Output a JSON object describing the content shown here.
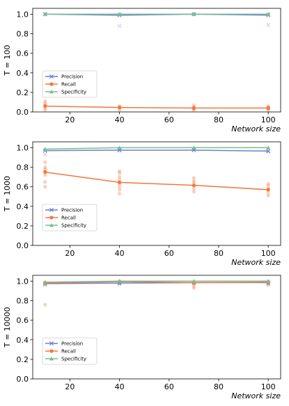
{
  "colors": {
    "precision": "#6b7fd7",
    "recall": "#f0783c",
    "specificity": "#77c08a"
  },
  "legend_labels": [
    "Precision",
    "Recall",
    "Specificity"
  ],
  "chart_data": [
    {
      "type": "line",
      "ylabel": "T = 100",
      "xlabel": "Network size",
      "xticks": [
        20,
        40,
        60,
        80,
        100
      ],
      "yticks": [
        "0.0",
        "0.2",
        "0.4",
        "0.6",
        "0.8",
        "1.0"
      ],
      "xlim": [
        5,
        105
      ],
      "ylim": [
        0,
        1.06
      ],
      "legend": "left-center",
      "x": [
        10,
        40,
        70,
        100
      ],
      "series": [
        {
          "name": "Precision",
          "values": [
            1.0,
            0.99,
            1.0,
            0.99
          ],
          "scatter": [
            [
              10,
              1.0
            ],
            [
              40,
              0.88
            ],
            [
              40,
              1.0
            ],
            [
              70,
              1.0
            ],
            [
              100,
              0.89
            ],
            [
              100,
              1.0
            ]
          ]
        },
        {
          "name": "Recall",
          "values": [
            0.06,
            0.045,
            0.04,
            0.04
          ],
          "scatter": [
            [
              10,
              0.02
            ],
            [
              10,
              0.04
            ],
            [
              10,
              0.07
            ],
            [
              10,
              0.09
            ],
            [
              10,
              0.11
            ],
            [
              40,
              0.02
            ],
            [
              40,
              0.04
            ],
            [
              40,
              0.05
            ],
            [
              40,
              0.06
            ],
            [
              70,
              0.02
            ],
            [
              70,
              0.03
            ],
            [
              70,
              0.05
            ],
            [
              70,
              0.07
            ],
            [
              100,
              0.02
            ],
            [
              100,
              0.03
            ],
            [
              100,
              0.05
            ],
            [
              100,
              0.06
            ]
          ]
        },
        {
          "name": "Specificity",
          "values": [
            1.0,
            1.0,
            1.0,
            1.0
          ],
          "scatter": []
        }
      ]
    },
    {
      "type": "line",
      "ylabel": "T = 1000",
      "xlabel": "Network size",
      "xticks": [
        20,
        40,
        60,
        80,
        100
      ],
      "yticks": [
        "0.0",
        "0.2",
        "0.4",
        "0.6",
        "0.8",
        "1.0"
      ],
      "xlim": [
        5,
        105
      ],
      "ylim": [
        0,
        1.06
      ],
      "legend": "left-center",
      "x": [
        10,
        40,
        70,
        100
      ],
      "series": [
        {
          "name": "Precision",
          "values": [
            0.97,
            0.975,
            0.975,
            0.965
          ],
          "scatter": [
            [
              10,
              0.93
            ],
            [
              10,
              0.97
            ],
            [
              40,
              0.97
            ],
            [
              100,
              0.96
            ]
          ]
        },
        {
          "name": "Recall",
          "values": [
            0.75,
            0.645,
            0.615,
            0.57
          ],
          "scatter": [
            [
              10,
              0.6
            ],
            [
              10,
              0.65
            ],
            [
              10,
              0.72
            ],
            [
              10,
              0.76
            ],
            [
              10,
              0.78
            ],
            [
              10,
              0.8
            ],
            [
              10,
              0.85
            ],
            [
              40,
              0.53
            ],
            [
              40,
              0.57
            ],
            [
              40,
              0.6
            ],
            [
              40,
              0.63
            ],
            [
              40,
              0.67
            ],
            [
              40,
              0.7
            ],
            [
              40,
              0.74
            ],
            [
              40,
              0.76
            ],
            [
              70,
              0.55
            ],
            [
              70,
              0.58
            ],
            [
              70,
              0.61
            ],
            [
              70,
              0.64
            ],
            [
              70,
              0.66
            ],
            [
              70,
              0.69
            ],
            [
              100,
              0.51
            ],
            [
              100,
              0.54
            ],
            [
              100,
              0.58
            ],
            [
              100,
              0.61
            ],
            [
              100,
              0.63
            ]
          ]
        },
        {
          "name": "Specificity",
          "values": [
            0.985,
            1.0,
            1.0,
            1.0
          ],
          "scatter": []
        }
      ]
    },
    {
      "type": "line",
      "ylabel": "T = 10000",
      "xlabel": "Network size",
      "xticks": [
        20,
        40,
        60,
        80,
        100
      ],
      "yticks": [
        "0.0",
        "0.2",
        "0.4",
        "0.6",
        "0.8",
        "1.0"
      ],
      "xlim": [
        5,
        105
      ],
      "ylim": [
        0,
        1.06
      ],
      "legend": "left-center",
      "x": [
        10,
        40,
        70,
        100
      ],
      "series": [
        {
          "name": "Precision",
          "values": [
            0.975,
            0.98,
            0.985,
            0.985
          ],
          "scatter": [
            [
              10,
              0.96
            ],
            [
              40,
              0.97
            ],
            [
              100,
              0.97
            ]
          ]
        },
        {
          "name": "Recall",
          "values": [
            0.98,
            0.995,
            0.985,
            0.99
          ],
          "scatter": [
            [
              10,
              0.76
            ],
            [
              10,
              0.97
            ],
            [
              10,
              0.99
            ],
            [
              40,
              0.98
            ],
            [
              40,
              1.0
            ],
            [
              70,
              0.93
            ],
            [
              70,
              0.95
            ],
            [
              70,
              0.97
            ],
            [
              70,
              0.99
            ],
            [
              100,
              0.96
            ],
            [
              100,
              0.98
            ],
            [
              100,
              1.0
            ]
          ]
        },
        {
          "name": "Specificity",
          "values": [
            0.99,
            1.0,
            1.0,
            1.0
          ],
          "scatter": []
        }
      ]
    }
  ]
}
